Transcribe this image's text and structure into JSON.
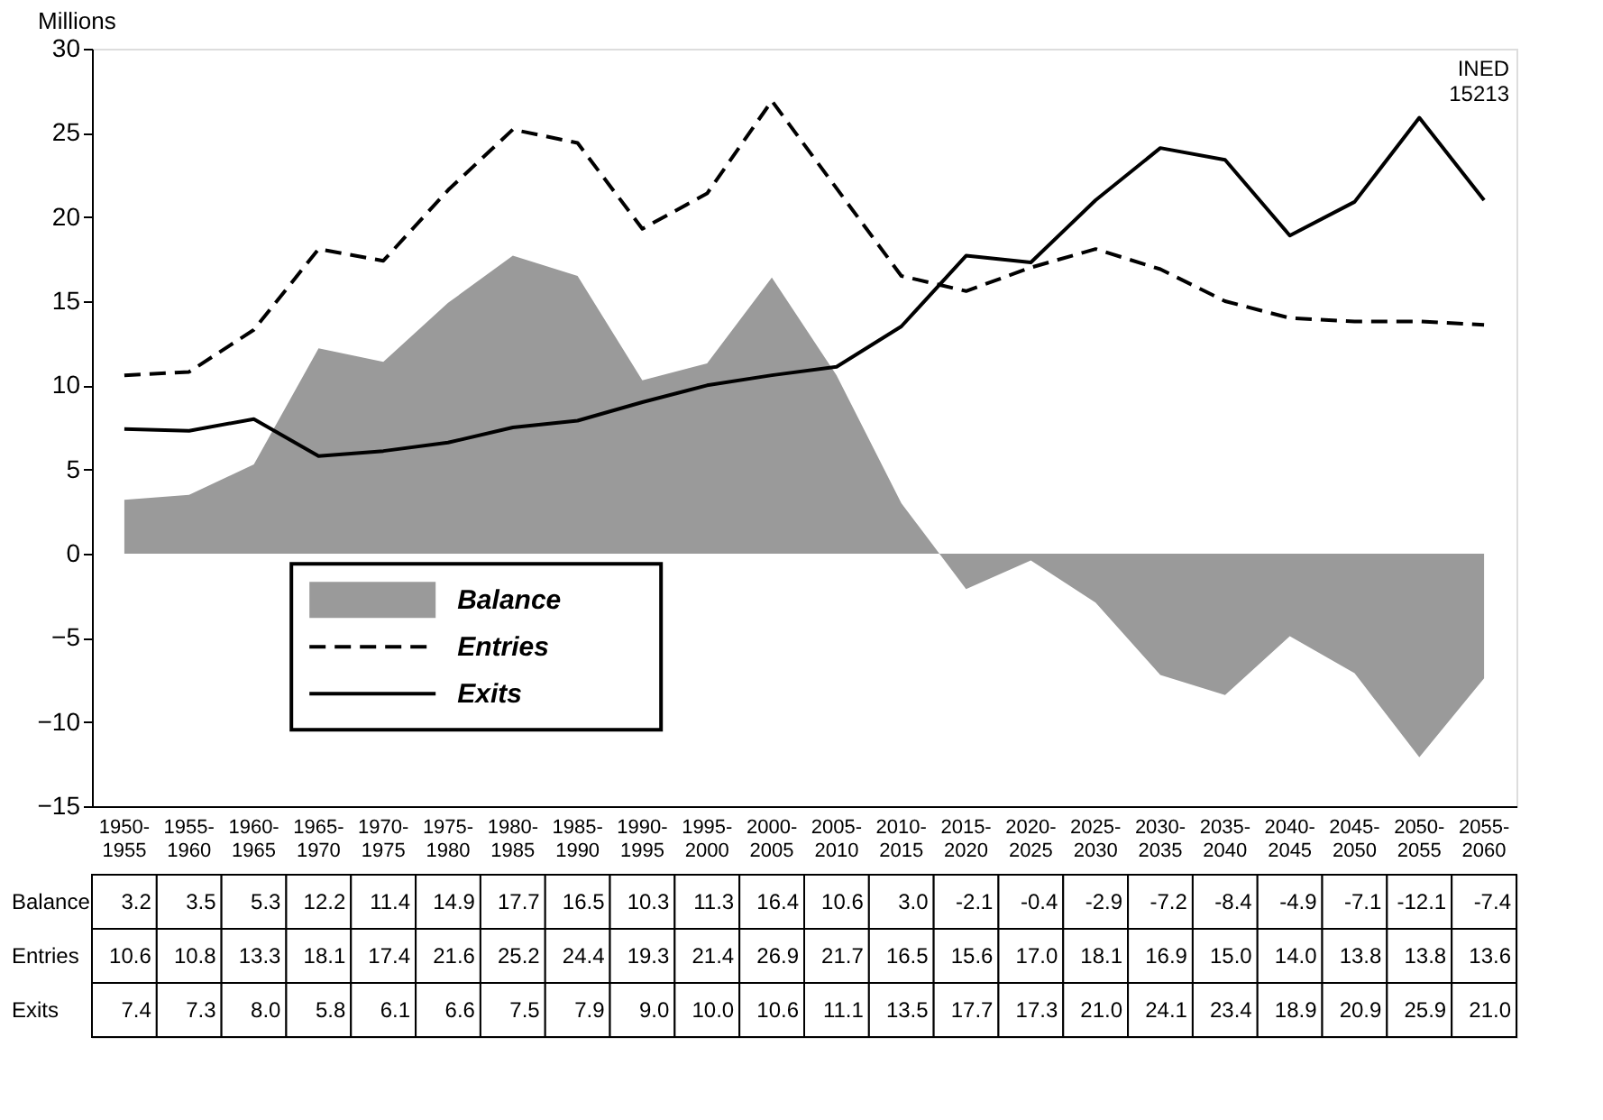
{
  "chart_data": {
    "type": "line",
    "ylabel": "Millions",
    "categories": [
      "1950-1955",
      "1955-1960",
      "1960-1965",
      "1965-1970",
      "1970-1975",
      "1975-1980",
      "1980-1985",
      "1985-1990",
      "1990-1995",
      "1995-2000",
      "2000-2005",
      "2005-2010",
      "2010-2015",
      "2015-2020",
      "2020-2025",
      "2025-2030",
      "2030-2035",
      "2035-2040",
      "2040-2045",
      "2045-2050",
      "2050-2055",
      "2055-2060"
    ],
    "series": [
      {
        "name": "Balance",
        "type": "area",
        "color": "#9a9a9a",
        "values": [
          3.2,
          3.5,
          5.3,
          12.2,
          11.4,
          14.9,
          17.7,
          16.5,
          10.3,
          11.3,
          16.4,
          10.6,
          3.0,
          -2.1,
          -0.4,
          -2.9,
          -7.2,
          -8.4,
          -4.9,
          -7.1,
          -12.1,
          -7.4
        ],
        "value_labels": [
          "3.2",
          "3.5",
          "5.3",
          "12.2",
          "11.4",
          "14.9",
          "17.7",
          "16.5",
          "10.3",
          "11.3",
          "16.4",
          "10.6",
          "3.0",
          "-2.1",
          "-0.4",
          "-2.9",
          "-7.2",
          "-8.4",
          "-4.9",
          "-7.1",
          "-12.1",
          "-7.4"
        ]
      },
      {
        "name": "Entries",
        "line_style": "dashed",
        "color": "#000000",
        "values": [
          10.6,
          10.8,
          13.3,
          18.1,
          17.4,
          21.6,
          25.2,
          24.4,
          19.3,
          21.4,
          26.9,
          21.7,
          16.5,
          15.6,
          17.0,
          18.1,
          16.9,
          15.0,
          14.0,
          13.8,
          13.8,
          13.6
        ],
        "value_labels": [
          "10.6",
          "10.8",
          "13.3",
          "18.1",
          "17.4",
          "21.6",
          "25.2",
          "24.4",
          "19.3",
          "21.4",
          "26.9",
          "21.7",
          "16.5",
          "15.6",
          "17.0",
          "18.1",
          "16.9",
          "15.0",
          "14.0",
          "13.8",
          "13.8",
          "13.6"
        ]
      },
      {
        "name": "Exits",
        "line_style": "solid",
        "color": "#000000",
        "values": [
          7.4,
          7.3,
          8.0,
          5.8,
          6.1,
          6.6,
          7.5,
          7.9,
          9.0,
          10.0,
          10.6,
          11.1,
          13.5,
          17.7,
          17.3,
          21.0,
          24.1,
          23.4,
          18.9,
          20.9,
          25.9,
          21.0
        ],
        "value_labels": [
          "7.4",
          "7.3",
          "8.0",
          "5.8",
          "6.1",
          "6.6",
          "7.5",
          "7.9",
          "9.0",
          "10.0",
          "10.6",
          "11.1",
          "13.5",
          "17.7",
          "17.3",
          "21.0",
          "24.1",
          "23.4",
          "18.9",
          "20.9",
          "25.9",
          "21.0"
        ]
      }
    ],
    "ylim": [
      -15,
      30
    ],
    "yticks": [
      -15,
      -10,
      -5,
      0,
      5,
      10,
      15,
      20,
      25,
      30
    ],
    "grid": false,
    "legend": "bottom left",
    "annotations": [
      "INED\n15213"
    ]
  }
}
